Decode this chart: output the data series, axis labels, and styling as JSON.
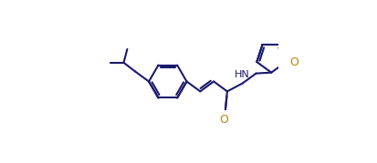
{
  "bg_color": "#ffffff",
  "bond_color": "#1a1a6e",
  "atom_O_color": "#b8860b",
  "atom_N_color": "#1a1a6e",
  "line_width": 1.5,
  "figsize": [
    4.13,
    1.79
  ],
  "dpi": 100,
  "xlim": [
    0.0,
    1.0
  ],
  "ylim": [
    0.05,
    0.95
  ]
}
